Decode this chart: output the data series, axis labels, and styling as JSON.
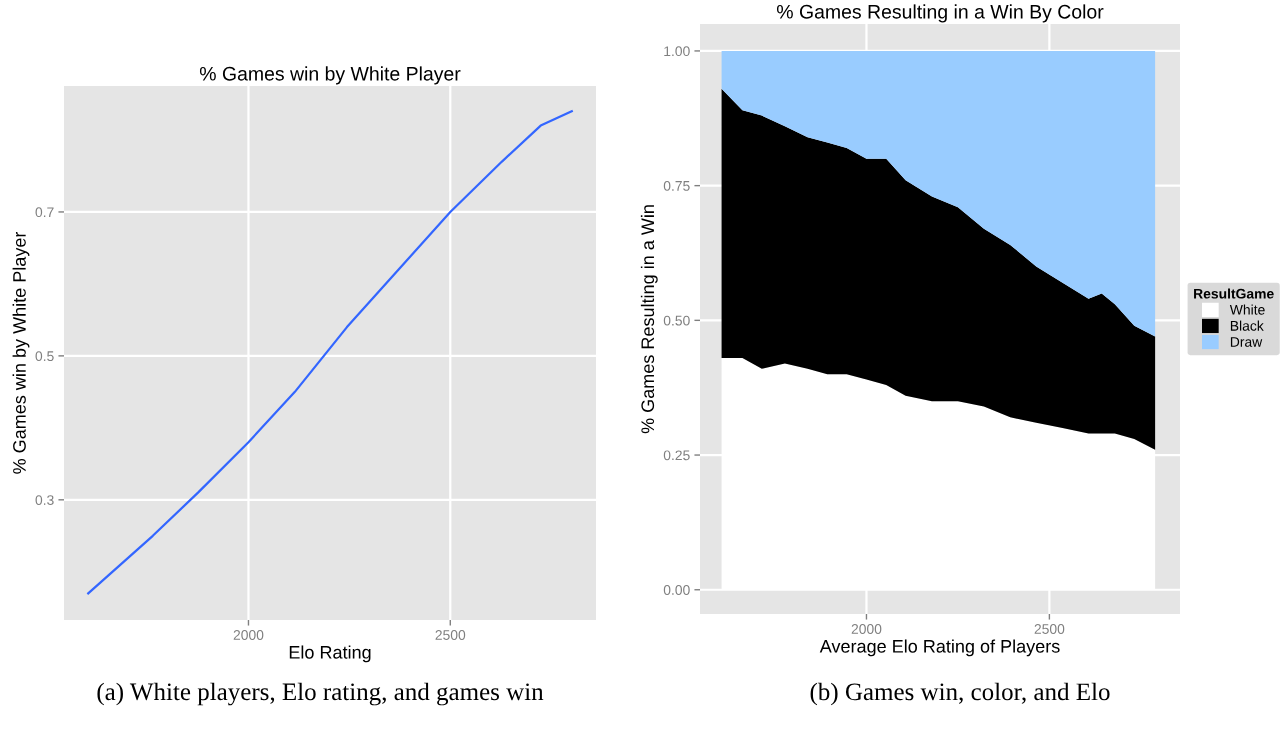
{
  "chart_data": [
    {
      "type": "line",
      "title": "% Games win by White Player",
      "xlabel": "Elo Rating",
      "ylabel": "% Games win by White Player",
      "series": [
        {
          "color": "#3366ff",
          "x": [
            1603,
            1763,
            1875,
            2000,
            2115,
            2244,
            2372,
            2500,
            2628,
            2724,
            2801
          ],
          "values": [
            0.17,
            0.25,
            0.31,
            0.38,
            0.45,
            0.54,
            0.62,
            0.7,
            0.77,
            0.82,
            0.84
          ]
        }
      ],
      "xlim": [
        1543,
        2861
      ],
      "ylim": [
        0.133,
        0.875
      ],
      "xticks": [
        2000,
        2500
      ],
      "yticks": [
        0.3,
        0.5,
        0.7
      ],
      "grid": true,
      "line_style": "solid",
      "annotations": [
        "(a) White players, Elo rating, and games win"
      ]
    },
    {
      "type": "area",
      "stacked": true,
      "title": "% Games Resulting in a Win By Color",
      "xlabel": "Average Elo Rating of Players",
      "ylabel": "% Games Resulting in a Win",
      "legend_title": "ResultGame",
      "legend": "right",
      "x": [
        1604,
        1661,
        1714,
        1777,
        1839,
        1893,
        1946,
        2000,
        2054,
        2107,
        2179,
        2250,
        2321,
        2393,
        2464,
        2536,
        2607,
        2643,
        2679,
        2732,
        2789
      ],
      "series": [
        {
          "name": "White",
          "color": "#ffffff",
          "values": [
            0.43,
            0.43,
            0.41,
            0.42,
            0.41,
            0.4,
            0.4,
            0.39,
            0.38,
            0.36,
            0.35,
            0.35,
            0.34,
            0.32,
            0.31,
            0.3,
            0.29,
            0.29,
            0.29,
            0.28,
            0.26
          ]
        },
        {
          "name": "Black",
          "color": "#000000",
          "values": [
            0.5,
            0.46,
            0.47,
            0.44,
            0.43,
            0.43,
            0.42,
            0.41,
            0.42,
            0.4,
            0.38,
            0.36,
            0.33,
            0.32,
            0.29,
            0.27,
            0.25,
            0.26,
            0.24,
            0.21,
            0.21
          ]
        },
        {
          "name": "Draw",
          "color": "#99ccff",
          "values": [
            0.07,
            0.11,
            0.12,
            0.14,
            0.16,
            0.17,
            0.18,
            0.2,
            0.2,
            0.24,
            0.27,
            0.29,
            0.33,
            0.36,
            0.4,
            0.43,
            0.46,
            0.45,
            0.47,
            0.51,
            0.53
          ]
        }
      ],
      "xlim": [
        1545,
        2857
      ],
      "ylim": [
        -0.045,
        1.05
      ],
      "xticks": [
        2000,
        2500
      ],
      "yticks": [
        {
          "value": 0,
          "label": "0.00"
        },
        {
          "value": 0.25,
          "label": "0.25"
        },
        {
          "value": 0.5,
          "label": "0.50"
        },
        {
          "value": 0.75,
          "label": "0.75"
        },
        {
          "value": 1,
          "label": "1.00"
        }
      ],
      "grid": true,
      "annotations": [
        "(b) Games win, color, and Elo"
      ]
    }
  ]
}
